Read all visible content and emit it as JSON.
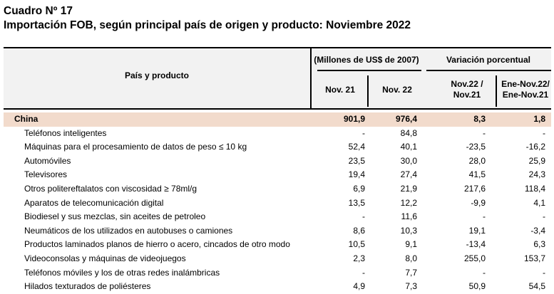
{
  "title": "Cuadro Nº 17",
  "subtitle": "Importación FOB, según principal país de origen y producto: Noviembre 2022",
  "headers": {
    "col_product": "País y producto",
    "group_millones": "(Millones de US$ de 2007)",
    "group_variacion": "Variación porcentual",
    "nov21": "Nov. 21",
    "nov22": "Nov. 22",
    "var1_line1": "Nov.22 /",
    "var1_line2": "Nov.21",
    "var2_line1": "Ene-Nov.22/",
    "var2_line2": "Ene-Nov.21"
  },
  "rows": [
    {
      "name": "China",
      "nov21": "901,9",
      "nov22": "976,4",
      "var1": "8,3",
      "var2": "1,8"
    },
    {
      "name": "Teléfonos inteligentes",
      "nov21": "-",
      "nov22": "84,8",
      "var1": "-",
      "var2": "-"
    },
    {
      "name": "Máquinas para el procesamiento de datos de peso ≤ 10 kg",
      "nov21": "52,4",
      "nov22": "40,1",
      "var1": "-23,5",
      "var2": "-16,2"
    },
    {
      "name": "Automóviles",
      "nov21": "23,5",
      "nov22": "30,0",
      "var1": "28,0",
      "var2": "25,9"
    },
    {
      "name": "Televisores",
      "nov21": "19,4",
      "nov22": "27,4",
      "var1": "41,5",
      "var2": "24,3"
    },
    {
      "name": "Otros politereftalatos con viscosidad ≥ 78ml/g",
      "nov21": "6,9",
      "nov22": "21,9",
      "var1": "217,6",
      "var2": "118,4"
    },
    {
      "name": "Aparatos de telecomunicación digital",
      "nov21": "13,5",
      "nov22": "12,2",
      "var1": "-9,9",
      "var2": "4,1"
    },
    {
      "name": "Biodiesel y sus mezclas, sin aceites de petroleo",
      "nov21": "-",
      "nov22": "11,6",
      "var1": "-",
      "var2": "-"
    },
    {
      "name": "Neumáticos de los utilizados en autobuses o camiones",
      "nov21": "8,6",
      "nov22": "10,3",
      "var1": "19,1",
      "var2": "-3,4"
    },
    {
      "name": "Productos laminados planos de hierro o acero, cincados de otro modo",
      "nov21": "10,5",
      "nov22": "9,1",
      "var1": "-13,4",
      "var2": "6,3"
    },
    {
      "name": "Videoconsolas y máquinas de videojuegos",
      "nov21": "2,3",
      "nov22": "8,0",
      "var1": "255,0",
      "var2": "153,7"
    },
    {
      "name": "Teléfonos móviles y los de otras redes inalámbricas",
      "nov21": "-",
      "nov22": "7,7",
      "var1": "-",
      "var2": "-"
    },
    {
      "name": "Hilados texturados de poliésteres",
      "nov21": "4,9",
      "nov22": "7,3",
      "var1": "50,9",
      "var2": "54,5"
    }
  ]
}
